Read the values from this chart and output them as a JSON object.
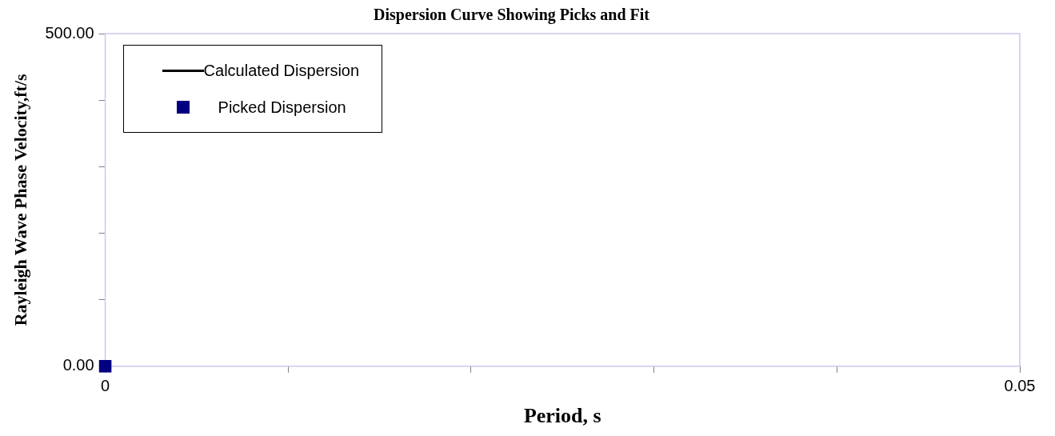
{
  "chart_data": {
    "type": "scatter",
    "title": "Dispersion Curve Showing Picks and Fit",
    "xlabel": "Period, s",
    "ylabel": "Rayleigh Wave Phase Velocity,ft/s",
    "xlim": [
      0,
      0.05
    ],
    "xticks": [
      0,
      {
        "value": 0.01,
        "label": null
      },
      {
        "value": 0.02,
        "label": null
      },
      {
        "value": 0.03,
        "label": null
      },
      {
        "value": 0.04,
        "label": null
      },
      0.05
    ],
    "ylim": [
      0,
      500
    ],
    "yticks": [
      {
        "value": 0,
        "label": "0.00"
      },
      {
        "value": 100,
        "label": null
      },
      {
        "value": 200,
        "label": null
      },
      {
        "value": 300,
        "label": null
      },
      {
        "value": 400,
        "label": null
      },
      {
        "value": 500,
        "label": "500.00"
      }
    ],
    "grid": false,
    "legend": "top left",
    "series": [
      {
        "name": "Calculated Dispersion",
        "type": "line",
        "color": "#000000",
        "marker": "none"
      },
      {
        "name": "Picked Dispersion",
        "color": "#000080",
        "marker": "square",
        "x": [
          0
        ],
        "values": [
          0
        ]
      }
    ]
  }
}
